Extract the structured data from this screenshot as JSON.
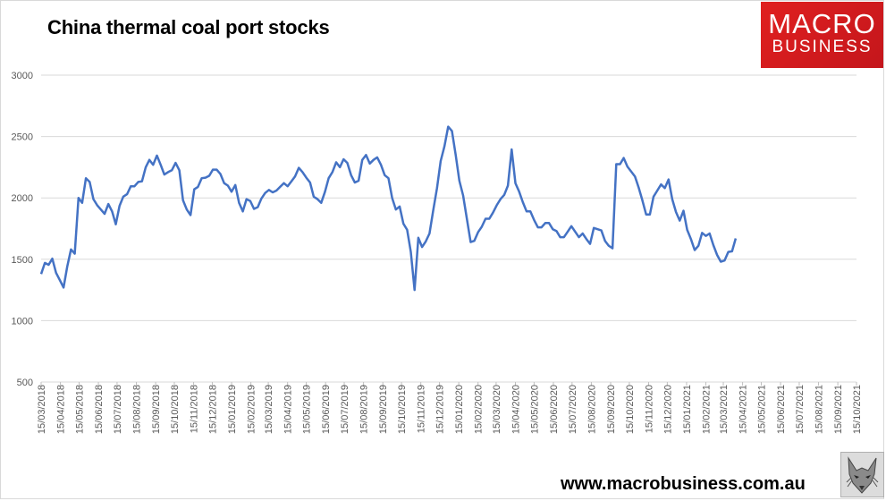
{
  "title": "China thermal coal port stocks",
  "logo": {
    "line1": "MACRO",
    "line2": "BUSINESS",
    "color": "#d91c1f"
  },
  "website": "www.macrobusiness.com.au",
  "chart_data": {
    "type": "line",
    "title": "China thermal coal port stocks",
    "xlabel": "",
    "ylabel": "",
    "ylim": [
      500,
      3000
    ],
    "yticks": [
      500,
      1000,
      1500,
      2000,
      2500,
      3000
    ],
    "grid": true,
    "legend": "none",
    "xticks": [
      "15/03/2018",
      "15/04/2018",
      "15/05/2018",
      "15/06/2018",
      "15/07/2018",
      "15/08/2018",
      "15/09/2018",
      "15/10/2018",
      "15/11/2018",
      "15/12/2018",
      "15/01/2019",
      "15/02/2019",
      "15/03/2019",
      "15/04/2019",
      "15/05/2019",
      "15/06/2019",
      "15/07/2019",
      "15/08/2019",
      "15/09/2019",
      "15/10/2019",
      "15/11/2019",
      "15/12/2019",
      "15/01/2020",
      "15/02/2020",
      "15/03/2020",
      "15/04/2020",
      "15/05/2020",
      "15/06/2020",
      "15/07/2020",
      "15/08/2020",
      "15/09/2020",
      "15/10/2020",
      "15/11/2020",
      "15/12/2020",
      "15/01/2021",
      "15/02/2021",
      "15/03/2021",
      "15/04/2021",
      "15/05/2021",
      "15/06/2021",
      "15/07/2021",
      "15/08/2021",
      "15/09/2021",
      "15/10/2021"
    ],
    "series": [
      {
        "color": "#4472c4",
        "points": [
          [
            "2018-03-15",
            1380
          ],
          [
            "2018-03-21",
            1470
          ],
          [
            "2018-03-27",
            1455
          ],
          [
            "2018-04-02",
            1505
          ],
          [
            "2018-04-08",
            1390
          ],
          [
            "2018-04-14",
            1330
          ],
          [
            "2018-04-20",
            1270
          ],
          [
            "2018-04-26",
            1440
          ],
          [
            "2018-05-02",
            1580
          ],
          [
            "2018-05-08",
            1545
          ],
          [
            "2018-05-14",
            2000
          ],
          [
            "2018-05-20",
            1960
          ],
          [
            "2018-05-26",
            2160
          ],
          [
            "2018-06-01",
            2130
          ],
          [
            "2018-06-07",
            1990
          ],
          [
            "2018-06-13",
            1940
          ],
          [
            "2018-06-19",
            1905
          ],
          [
            "2018-06-25",
            1870
          ],
          [
            "2018-07-01",
            1950
          ],
          [
            "2018-07-07",
            1890
          ],
          [
            "2018-07-13",
            1785
          ],
          [
            "2018-07-19",
            1935
          ],
          [
            "2018-07-25",
            2010
          ],
          [
            "2018-07-31",
            2030
          ],
          [
            "2018-08-06",
            2095
          ],
          [
            "2018-08-12",
            2095
          ],
          [
            "2018-08-18",
            2130
          ],
          [
            "2018-08-24",
            2135
          ],
          [
            "2018-08-30",
            2250
          ],
          [
            "2018-09-05",
            2310
          ],
          [
            "2018-09-11",
            2270
          ],
          [
            "2018-09-17",
            2345
          ],
          [
            "2018-09-23",
            2270
          ],
          [
            "2018-09-29",
            2190
          ],
          [
            "2018-10-05",
            2210
          ],
          [
            "2018-10-11",
            2225
          ],
          [
            "2018-10-17",
            2285
          ],
          [
            "2018-10-23",
            2225
          ],
          [
            "2018-10-29",
            1980
          ],
          [
            "2018-11-04",
            1905
          ],
          [
            "2018-11-10",
            1860
          ],
          [
            "2018-11-16",
            2070
          ],
          [
            "2018-11-22",
            2090
          ],
          [
            "2018-11-28",
            2160
          ],
          [
            "2018-12-04",
            2165
          ],
          [
            "2018-12-10",
            2180
          ],
          [
            "2018-12-16",
            2230
          ],
          [
            "2018-12-22",
            2230
          ],
          [
            "2018-12-28",
            2195
          ],
          [
            "2019-01-03",
            2120
          ],
          [
            "2019-01-09",
            2100
          ],
          [
            "2019-01-15",
            2050
          ],
          [
            "2019-01-21",
            2105
          ],
          [
            "2019-01-27",
            1960
          ],
          [
            "2019-02-02",
            1890
          ],
          [
            "2019-02-08",
            1990
          ],
          [
            "2019-02-14",
            1975
          ],
          [
            "2019-02-20",
            1910
          ],
          [
            "2019-02-26",
            1925
          ],
          [
            "2019-03-04",
            1995
          ],
          [
            "2019-03-10",
            2040
          ],
          [
            "2019-03-16",
            2065
          ],
          [
            "2019-03-22",
            2045
          ],
          [
            "2019-03-28",
            2060
          ],
          [
            "2019-04-03",
            2090
          ],
          [
            "2019-04-09",
            2120
          ],
          [
            "2019-04-15",
            2095
          ],
          [
            "2019-04-21",
            2135
          ],
          [
            "2019-04-27",
            2175
          ],
          [
            "2019-05-03",
            2245
          ],
          [
            "2019-05-09",
            2210
          ],
          [
            "2019-05-15",
            2165
          ],
          [
            "2019-05-21",
            2125
          ],
          [
            "2019-05-27",
            2010
          ],
          [
            "2019-06-02",
            1990
          ],
          [
            "2019-06-08",
            1960
          ],
          [
            "2019-06-14",
            2050
          ],
          [
            "2019-06-20",
            2160
          ],
          [
            "2019-06-26",
            2210
          ],
          [
            "2019-07-02",
            2290
          ],
          [
            "2019-07-08",
            2250
          ],
          [
            "2019-07-14",
            2315
          ],
          [
            "2019-07-20",
            2285
          ],
          [
            "2019-07-26",
            2185
          ],
          [
            "2019-08-01",
            2125
          ],
          [
            "2019-08-07",
            2140
          ],
          [
            "2019-08-13",
            2310
          ],
          [
            "2019-08-19",
            2350
          ],
          [
            "2019-08-25",
            2280
          ],
          [
            "2019-08-31",
            2310
          ],
          [
            "2019-09-06",
            2330
          ],
          [
            "2019-09-12",
            2270
          ],
          [
            "2019-09-18",
            2185
          ],
          [
            "2019-09-24",
            2160
          ],
          [
            "2019-09-30",
            2000
          ],
          [
            "2019-10-06",
            1905
          ],
          [
            "2019-10-12",
            1930
          ],
          [
            "2019-10-18",
            1790
          ],
          [
            "2019-10-24",
            1740
          ],
          [
            "2019-10-30",
            1560
          ],
          [
            "2019-11-05",
            1250
          ],
          [
            "2019-11-11",
            1675
          ],
          [
            "2019-11-17",
            1600
          ],
          [
            "2019-11-23",
            1645
          ],
          [
            "2019-11-29",
            1710
          ],
          [
            "2019-12-05",
            1900
          ],
          [
            "2019-12-11",
            2080
          ],
          [
            "2019-12-17",
            2300
          ],
          [
            "2019-12-23",
            2420
          ],
          [
            "2019-12-29",
            2580
          ],
          [
            "2020-01-04",
            2545
          ],
          [
            "2020-01-10",
            2350
          ],
          [
            "2020-01-16",
            2140
          ],
          [
            "2020-01-22",
            2020
          ],
          [
            "2020-01-28",
            1830
          ],
          [
            "2020-02-03",
            1640
          ],
          [
            "2020-02-09",
            1650
          ],
          [
            "2020-02-15",
            1720
          ],
          [
            "2020-02-21",
            1765
          ],
          [
            "2020-02-27",
            1830
          ],
          [
            "2020-03-04",
            1830
          ],
          [
            "2020-03-10",
            1880
          ],
          [
            "2020-03-16",
            1940
          ],
          [
            "2020-03-22",
            1990
          ],
          [
            "2020-03-28",
            2025
          ],
          [
            "2020-04-03",
            2100
          ],
          [
            "2020-04-09",
            2395
          ],
          [
            "2020-04-15",
            2120
          ],
          [
            "2020-04-21",
            2050
          ],
          [
            "2020-04-27",
            1965
          ],
          [
            "2020-05-03",
            1890
          ],
          [
            "2020-05-09",
            1890
          ],
          [
            "2020-05-15",
            1820
          ],
          [
            "2020-05-21",
            1760
          ],
          [
            "2020-05-27",
            1760
          ],
          [
            "2020-06-02",
            1795
          ],
          [
            "2020-06-08",
            1795
          ],
          [
            "2020-06-14",
            1745
          ],
          [
            "2020-06-20",
            1730
          ],
          [
            "2020-06-26",
            1680
          ],
          [
            "2020-07-02",
            1680
          ],
          [
            "2020-07-08",
            1725
          ],
          [
            "2020-07-14",
            1770
          ],
          [
            "2020-07-20",
            1725
          ],
          [
            "2020-07-26",
            1680
          ],
          [
            "2020-08-01",
            1710
          ],
          [
            "2020-08-07",
            1665
          ],
          [
            "2020-08-13",
            1625
          ],
          [
            "2020-08-19",
            1755
          ],
          [
            "2020-08-25",
            1745
          ],
          [
            "2020-08-31",
            1735
          ],
          [
            "2020-09-06",
            1650
          ],
          [
            "2020-09-12",
            1610
          ],
          [
            "2020-09-18",
            1590
          ],
          [
            "2020-09-24",
            2275
          ],
          [
            "2020-09-30",
            2275
          ],
          [
            "2020-10-06",
            2325
          ],
          [
            "2020-10-12",
            2255
          ],
          [
            "2020-10-18",
            2215
          ],
          [
            "2020-10-24",
            2175
          ],
          [
            "2020-10-30",
            2085
          ],
          [
            "2020-11-05",
            1980
          ],
          [
            "2020-11-11",
            1865
          ],
          [
            "2020-11-17",
            1865
          ],
          [
            "2020-11-23",
            2010
          ],
          [
            "2020-11-29",
            2060
          ],
          [
            "2020-12-05",
            2110
          ],
          [
            "2020-12-11",
            2080
          ],
          [
            "2020-12-17",
            2150
          ],
          [
            "2020-12-23",
            1990
          ],
          [
            "2020-12-29",
            1885
          ],
          [
            "2021-01-04",
            1815
          ],
          [
            "2021-01-10",
            1895
          ],
          [
            "2021-01-16",
            1740
          ],
          [
            "2021-01-22",
            1665
          ],
          [
            "2021-01-28",
            1575
          ],
          [
            "2021-02-03",
            1610
          ],
          [
            "2021-02-09",
            1715
          ],
          [
            "2021-02-15",
            1690
          ],
          [
            "2021-02-21",
            1710
          ],
          [
            "2021-02-27",
            1615
          ],
          [
            "2021-03-05",
            1535
          ],
          [
            "2021-03-11",
            1480
          ],
          [
            "2021-03-17",
            1490
          ],
          [
            "2021-03-23",
            1560
          ],
          [
            "2021-03-29",
            1565
          ],
          [
            "2021-04-04",
            1670
          ]
        ]
      }
    ]
  }
}
